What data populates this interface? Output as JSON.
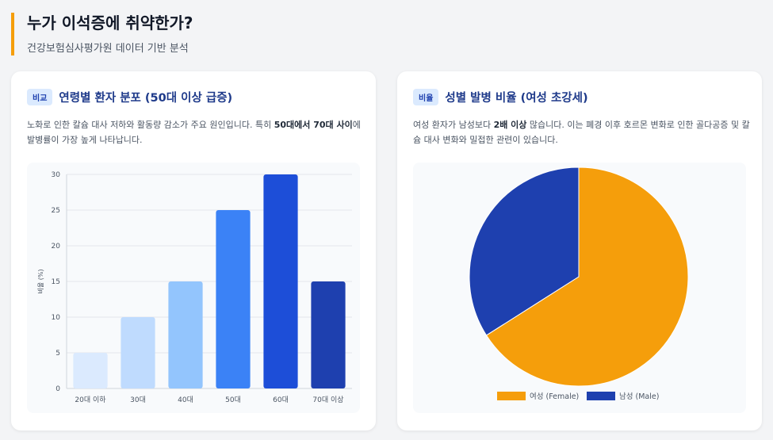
{
  "header": {
    "title": "누가 이석증에 취약한가?",
    "subtitle": "건강보험심사평가원 데이터 기반 분석"
  },
  "cards": [
    {
      "badge": "비교",
      "title": "연령별 환자 분포 (50대 이상 급증)",
      "desc_1": "노화로 인한 칼슘 대사 저하와 활동량 감소가 주요 원인입니다. 특히 ",
      "desc_bold": "50대에서 70대 사이",
      "desc_2": "에 발병률이 가장 높게 나타납니다."
    },
    {
      "badge": "비율",
      "title": "성별 발병 비율 (여성 초강세)",
      "desc_1": "여성 환자가 남성보다 ",
      "desc_bold": "2배 이상",
      "desc_2": " 많습니다. 이는 폐경 이후 호르몬 변화로 인한 골다공증 및 칼슘 대사 변화와 밀접한 관련이 있습니다."
    }
  ],
  "chart_data": [
    {
      "type": "bar",
      "categories": [
        "20대 이하",
        "30대",
        "40대",
        "50대",
        "60대",
        "70대 이상"
      ],
      "values": [
        5,
        10,
        15,
        25,
        30,
        15
      ],
      "colors": [
        "#dbeafe",
        "#bfdbfe",
        "#93c5fd",
        "#3b82f6",
        "#1d4ed8",
        "#1e40af"
      ],
      "ylabel": "비율 (%)",
      "ylim": [
        0,
        30
      ],
      "yticks": [
        0,
        5,
        10,
        15,
        20,
        25,
        30
      ],
      "grid": true
    },
    {
      "type": "pie",
      "labels": [
        "여성 (Female)",
        "남성 (Male)"
      ],
      "values": [
        66,
        34
      ],
      "colors": [
        "#f59e0b",
        "#1e40af"
      ],
      "legend": "bottom"
    }
  ]
}
